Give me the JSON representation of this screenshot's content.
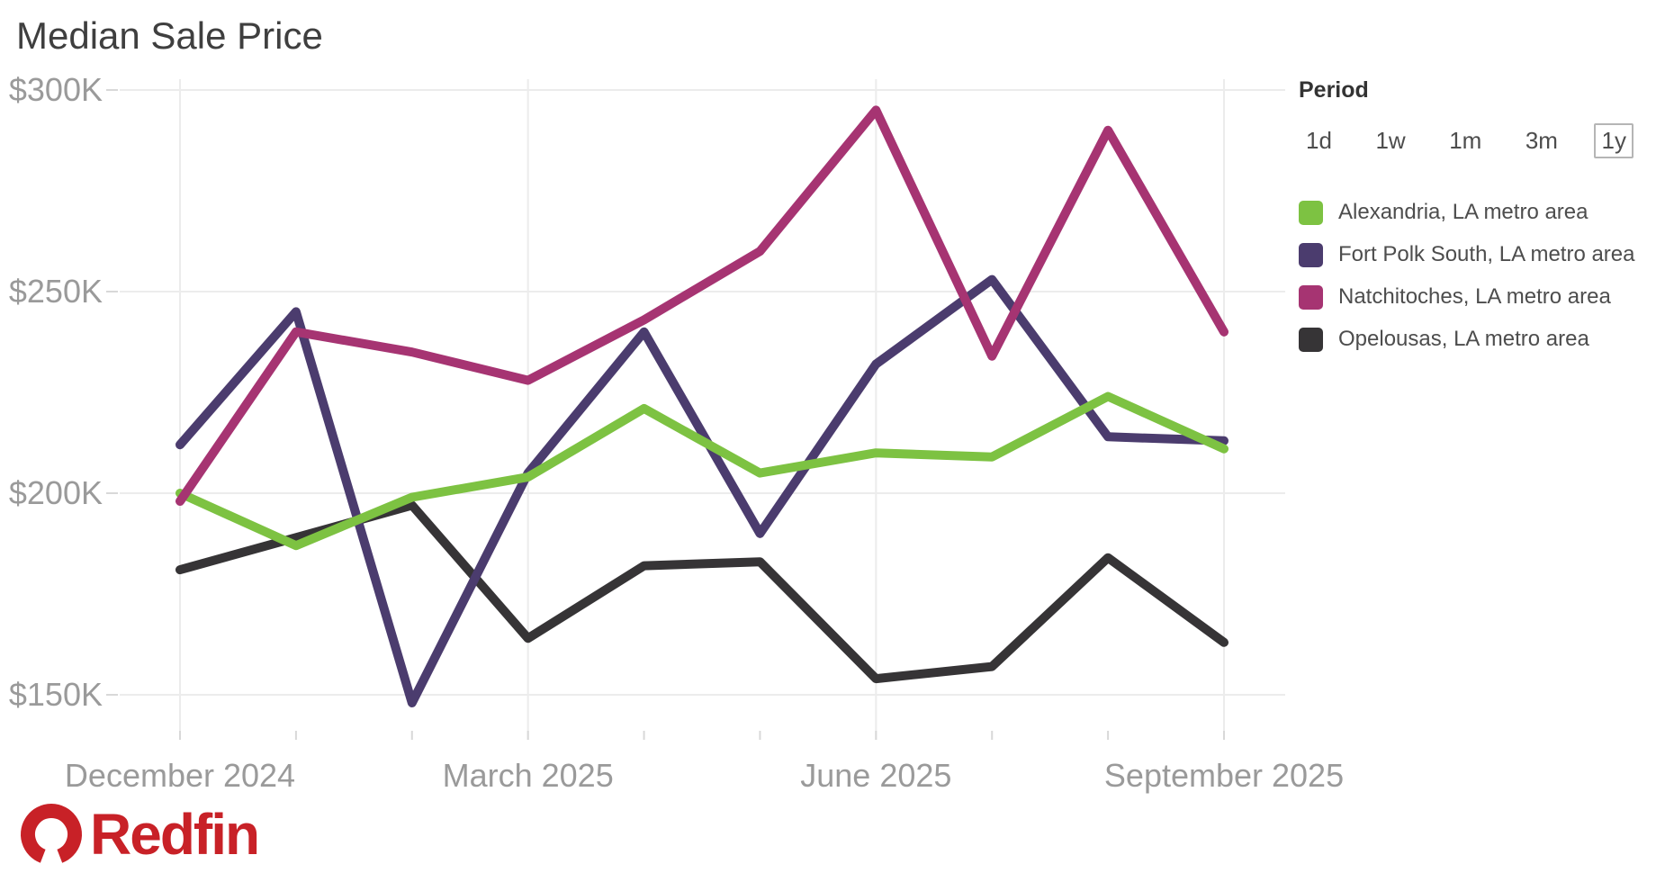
{
  "title": "Median Sale Price",
  "period": {
    "label": "Period",
    "options": [
      "1d",
      "1w",
      "1m",
      "3m",
      "1y"
    ],
    "selected": "1y"
  },
  "chart_data": {
    "type": "line",
    "title": "Median Sale Price",
    "unit": "USD thousands",
    "x": [
      "Dec 2024",
      "Jan 2025",
      "Feb 2025",
      "Mar 2025",
      "Apr 2025",
      "May 2025",
      "Jun 2025",
      "Jul 2025",
      "Aug 2025",
      "Sep 2025"
    ],
    "x_major_tick_indices": [
      0,
      3,
      6,
      9
    ],
    "x_major_tick_labels": [
      "December 2024",
      "March 2025",
      "June 2025",
      "September 2025"
    ],
    "y_ticks": [
      300,
      250,
      200,
      150
    ],
    "y_tick_labels": [
      "$300K",
      "$250K",
      "$200K",
      "$150K"
    ],
    "ylim": [
      140,
      310
    ],
    "grid": true,
    "legend_position": "right",
    "draw_order": [
      3,
      1,
      0,
      2
    ],
    "series": [
      {
        "name": "Alexandria, LA metro area",
        "color": "#7dc242",
        "values": [
          200,
          187,
          199,
          204,
          221,
          205,
          210,
          209,
          224,
          211
        ]
      },
      {
        "name": "Fort Polk South, LA metro area",
        "color": "#4b3c6e",
        "values": [
          212,
          245,
          148,
          205,
          240,
          190,
          232,
          253,
          214,
          213
        ]
      },
      {
        "name": "Natchitoches, LA metro area",
        "color": "#a63472",
        "values": [
          198,
          240,
          235,
          228,
          243,
          260,
          295,
          234,
          290,
          240
        ]
      },
      {
        "name": "Opelousas, LA metro area",
        "color": "#363436",
        "values": [
          181,
          189,
          197,
          164,
          182,
          183,
          154,
          157,
          184,
          163
        ]
      }
    ]
  },
  "footer": {
    "brand": "Redfin"
  },
  "colors": {
    "brand_red": "#c82127",
    "grid": "#ececec",
    "tick": "#d8d8d8",
    "axis_text": "#9a9a9a",
    "title_text": "#3f3f3f",
    "legend_text": "#4d4d4d"
  }
}
